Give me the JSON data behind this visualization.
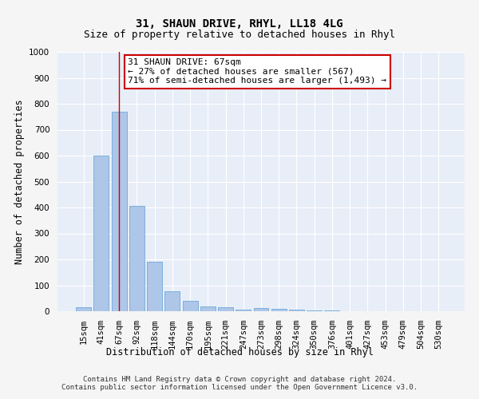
{
  "title": "31, SHAUN DRIVE, RHYL, LL18 4LG",
  "subtitle": "Size of property relative to detached houses in Rhyl",
  "xlabel": "Distribution of detached houses by size in Rhyl",
  "ylabel": "Number of detached properties",
  "categories": [
    "15sqm",
    "41sqm",
    "67sqm",
    "92sqm",
    "118sqm",
    "144sqm",
    "170sqm",
    "195sqm",
    "221sqm",
    "247sqm",
    "273sqm",
    "298sqm",
    "324sqm",
    "350sqm",
    "376sqm",
    "401sqm",
    "427sqm",
    "453sqm",
    "479sqm",
    "504sqm",
    "530sqm"
  ],
  "values": [
    15,
    600,
    770,
    405,
    190,
    78,
    40,
    18,
    15,
    5,
    12,
    8,
    5,
    3,
    2,
    1,
    1,
    0,
    0,
    0,
    0
  ],
  "bar_color": "#aec6e8",
  "bar_edge_color": "#5a9fd4",
  "vline_x": 2,
  "vline_color": "#cc0000",
  "ylim": [
    0,
    1000
  ],
  "yticks": [
    0,
    100,
    200,
    300,
    400,
    500,
    600,
    700,
    800,
    900,
    1000
  ],
  "annotation_text": "31 SHAUN DRIVE: 67sqm\n← 27% of detached houses are smaller (567)\n71% of semi-detached houses are larger (1,493) →",
  "annotation_box_color": "#ffffff",
  "annotation_box_edge": "#cc0000",
  "footer": "Contains HM Land Registry data © Crown copyright and database right 2024.\nContains public sector information licensed under the Open Government Licence v3.0.",
  "bg_color": "#e8eef8",
  "fig_bg_color": "#f5f5f5",
  "grid_color": "#ffffff",
  "title_fontsize": 10,
  "subtitle_fontsize": 9,
  "axis_label_fontsize": 8.5,
  "tick_fontsize": 7.5,
  "footer_fontsize": 6.5,
  "annotation_fontsize": 8
}
